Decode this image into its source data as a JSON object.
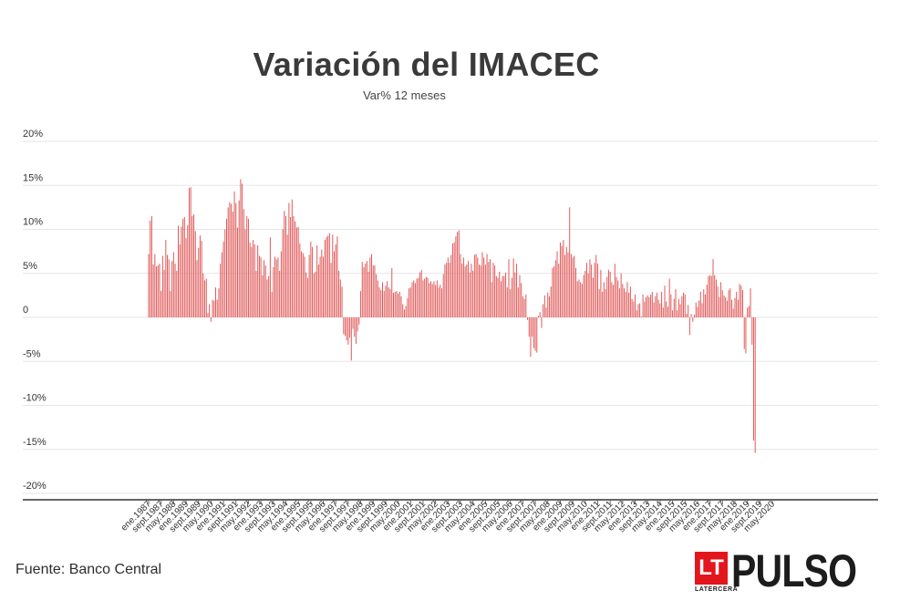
{
  "title": "Variación del IMACEC",
  "subtitle": "Var% 12 meses",
  "source": "Fuente: Banco Central",
  "logo": {
    "lt": "LT",
    "sub": "LATERCERA",
    "brand": "PULSO"
  },
  "colors": {
    "bar": "#e05a5a",
    "grid": "#e6e6e6",
    "axis": "#333333"
  },
  "chart_data": {
    "type": "bar",
    "title": "Variación del IMACEC",
    "subtitle": "Var% 12 meses",
    "ylim": [
      -20,
      20
    ],
    "yticks": [
      20,
      15,
      10,
      5,
      0,
      -5,
      -10,
      -15,
      -20
    ],
    "ytick_labels": [
      "20%",
      "15%",
      "10%",
      "5%",
      "0",
      "-5%",
      "-10%",
      "-15%",
      "-20%"
    ],
    "grid": true,
    "x_start": "ene.1987",
    "x_end": "may.2020",
    "x_tick_labels": [
      "ene.1987",
      "sept.1987",
      "may.1988",
      "ene.1989",
      "sept.1989",
      "may.1990",
      "ene.1991",
      "sept.1991",
      "may.1992",
      "ene.1993",
      "sept.1993",
      "may.1994",
      "ene.1995",
      "sept.1995",
      "may.1996",
      "ene.1997",
      "sept.1997",
      "may.1998",
      "ene.1999",
      "sept.1999",
      "may.2000",
      "ene.2001",
      "sept.2001",
      "may.2002",
      "ene.2003",
      "sept.2003",
      "may.2004",
      "ene.2005",
      "sept.2005",
      "may.2006",
      "ene.2007",
      "sept.2007",
      "may.2008",
      "ene.2009",
      "sept.2009",
      "may.2010",
      "ene.2011",
      "sept.2011",
      "may.2012",
      "ene.2013",
      "sept.2013",
      "may.2014",
      "ene.2015",
      "sept.2015",
      "may.2016",
      "ene.2017",
      "sept.2017",
      "may.2018",
      "ene.2019",
      "sept.2019",
      "may.2020"
    ],
    "x_tick_every_months": 8,
    "values": [
      7.2,
      11.0,
      11.5,
      6.0,
      7.2,
      5.8,
      5.9,
      6.1,
      3.0,
      7.0,
      5.4,
      8.8,
      7.1,
      6.6,
      3.0,
      6.4,
      7.4,
      6.1,
      5.3,
      10.4,
      8.3,
      10.3,
      11.2,
      11.4,
      9.0,
      10.5,
      14.7,
      14.8,
      11.5,
      11.7,
      9.8,
      6.5,
      7.9,
      9.3,
      8.7,
      5.0,
      4.2,
      4.4,
      0.5,
      1.5,
      -0.5,
      2.0,
      1.9,
      3.4,
      2.0,
      3.3,
      6.1,
      7.4,
      8.6,
      10.0,
      11.2,
      12.5,
      13.1,
      12.9,
      12.0,
      14.3,
      13.0,
      10.2,
      13.3,
      15.7,
      15.2,
      12.3,
      10.0,
      11.5,
      11.2,
      8.5,
      8.0,
      8.8,
      8.3,
      5.3,
      8.2,
      7.0,
      6.8,
      4.8,
      6.5,
      5.9,
      4.3,
      4.7,
      9.1,
      2.9,
      5.7,
      6.9,
      6.6,
      6.8,
      5.3,
      7.5,
      10.0,
      12.1,
      11.5,
      9.4,
      13.0,
      11.4,
      13.4,
      11.5,
      10.9,
      10.2,
      10.3,
      8.4,
      7.5,
      7.3,
      6.9,
      5.1,
      4.5,
      7.1,
      8.6,
      8.0,
      5.0,
      5.2,
      8.2,
      6.0,
      6.9,
      7.7,
      6.9,
      8.8,
      9.1,
      9.3,
      9.6,
      6.2,
      9.4,
      7.5,
      8.3,
      9.2,
      5.3,
      4.3,
      3.5,
      -1.9,
      -2.1,
      -2.6,
      -3.1,
      -2.3,
      -4.9,
      -1.3,
      -2.2,
      -3.0,
      -1.6,
      -0.8,
      3.0,
      6.3,
      5.7,
      6.1,
      6.4,
      5.2,
      6.8,
      7.2,
      5.9,
      5.9,
      4.9,
      4.2,
      3.4,
      3.1,
      4.0,
      3.0,
      3.6,
      4.1,
      3.4,
      3.2,
      5.6,
      2.8,
      2.9,
      3.0,
      2.7,
      2.9,
      2.4,
      1.5,
      0.9,
      1.3,
      2.2,
      3.3,
      3.4,
      4.0,
      4.2,
      3.9,
      4.4,
      4.5,
      5.1,
      5.4,
      4.2,
      4.4,
      4.6,
      4.5,
      3.9,
      4.1,
      3.8,
      4.1,
      3.7,
      4.2,
      3.4,
      3.7,
      3.3,
      4.9,
      6.0,
      6.2,
      6.8,
      6.2,
      7.1,
      8.4,
      8.5,
      9.2,
      9.7,
      9.9,
      7.2,
      6.1,
      6.8,
      5.8,
      6.0,
      6.4,
      5.1,
      6.1,
      5.3,
      7.1,
      7.2,
      6.8,
      6.0,
      5.9,
      7.4,
      6.8,
      6.0,
      7.2,
      6.3,
      6.6,
      4.0,
      6.2,
      5.9,
      4.7,
      4.5,
      5.2,
      4.1,
      4.7,
      4.7,
      5.1,
      3.4,
      6.6,
      3.2,
      4.5,
      6.7,
      5.1,
      6.1,
      3.4,
      4.8,
      3.9,
      2.4,
      2.1,
      2.6,
      -0.3,
      -2.2,
      -4.5,
      -2.2,
      -3.5,
      -3.8,
      -4.0,
      0.2,
      0.6,
      -1.2,
      1.5,
      2.5,
      1.1,
      2.8,
      2.4,
      3.5,
      5.6,
      5.8,
      6.5,
      7.5,
      6.1,
      8.5,
      8.1,
      8.8,
      7.1,
      8.0,
      7.4,
      12.5,
      7.2,
      6.8,
      7.0,
      5.6,
      4.1,
      4.3,
      4.0,
      3.8,
      4.8,
      5.3,
      6.2,
      5.0,
      6.6,
      6.0,
      4.5,
      6.2,
      7.1,
      6.1,
      3.2,
      5.4,
      2.9,
      4.0,
      3.2,
      4.6,
      5.4,
      5.2,
      4.0,
      3.7,
      6.1,
      4.6,
      4.2,
      3.3,
      5.0,
      3.8,
      3.3,
      2.9,
      4.0,
      2.8,
      3.5,
      2.1,
      1.8,
      2.6,
      0.8,
      1.5,
      1.6,
      0.1,
      2.6,
      1.8,
      2.3,
      2.5,
      2.3,
      2.6,
      2.9,
      1.7,
      2.4,
      2.8,
      2.0,
      1.6,
      2.9,
      1.1,
      3.6,
      1.8,
      1.2,
      4.4,
      2.6,
      0.8,
      2.1,
      3.2,
      0.8,
      2.1,
      1.5,
      2.4,
      2.8,
      2.6,
      0.4,
      1.4,
      -2.0,
      0.4,
      -0.5,
      0.3,
      1.7,
      1.2,
      1.9,
      2.9,
      1.6,
      3.2,
      2.6,
      3.7,
      4.7,
      4.8,
      4.7,
      6.6,
      4.8,
      4.3,
      3.5,
      2.3,
      4.0,
      3.1,
      2.5,
      2.3,
      1.9,
      3.1,
      3.3,
      2.0,
      1.0,
      2.2,
      2.9,
      2.0,
      3.8,
      3.6,
      3.1,
      -3.6,
      -4.1,
      1.1,
      1.3,
      3.3,
      -3.1,
      -14.0,
      -15.4
    ]
  }
}
